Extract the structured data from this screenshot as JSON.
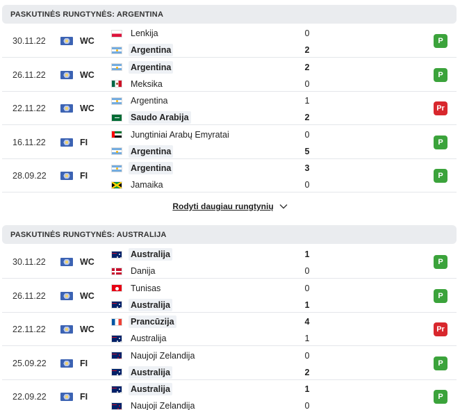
{
  "sections": [
    {
      "title": "PASKUTINĖS RUNGTYNĖS: ARGENTINA",
      "matches": [
        {
          "date": "30.11.22",
          "comp": "WC",
          "t1": {
            "name": "Lenkija",
            "flag": "pl",
            "score": "0",
            "win": false
          },
          "t2": {
            "name": "Argentina",
            "flag": "ar",
            "score": "2",
            "win": true
          },
          "result": "P",
          "result_type": "win"
        },
        {
          "date": "26.11.22",
          "comp": "WC",
          "t1": {
            "name": "Argentina",
            "flag": "ar",
            "score": "2",
            "win": true
          },
          "t2": {
            "name": "Meksika",
            "flag": "mx",
            "score": "0",
            "win": false
          },
          "result": "P",
          "result_type": "win"
        },
        {
          "date": "22.11.22",
          "comp": "WC",
          "t1": {
            "name": "Argentina",
            "flag": "ar",
            "score": "1",
            "win": false
          },
          "t2": {
            "name": "Saudo Arabija",
            "flag": "sa",
            "score": "2",
            "win": true
          },
          "result": "Pr",
          "result_type": "loss"
        },
        {
          "date": "16.11.22",
          "comp": "FI",
          "t1": {
            "name": "Jungtiniai Arabų Emyratai",
            "flag": "ae",
            "score": "0",
            "win": false
          },
          "t2": {
            "name": "Argentina",
            "flag": "ar",
            "score": "5",
            "win": true
          },
          "result": "P",
          "result_type": "win"
        },
        {
          "date": "28.09.22",
          "comp": "FI",
          "t1": {
            "name": "Argentina",
            "flag": "ar",
            "score": "3",
            "win": true
          },
          "t2": {
            "name": "Jamaika",
            "flag": "jm",
            "score": "0",
            "win": false
          },
          "result": "P",
          "result_type": "win"
        }
      ]
    },
    {
      "title": "PASKUTINĖS RUNGTYNĖS: AUSTRALIJA",
      "matches": [
        {
          "date": "30.11.22",
          "comp": "WC",
          "t1": {
            "name": "Australija",
            "flag": "au",
            "score": "1",
            "win": true
          },
          "t2": {
            "name": "Danija",
            "flag": "dk",
            "score": "0",
            "win": false
          },
          "result": "P",
          "result_type": "win"
        },
        {
          "date": "26.11.22",
          "comp": "WC",
          "t1": {
            "name": "Tunisas",
            "flag": "tn",
            "score": "0",
            "win": false
          },
          "t2": {
            "name": "Australija",
            "flag": "au",
            "score": "1",
            "win": true
          },
          "result": "P",
          "result_type": "win"
        },
        {
          "date": "22.11.22",
          "comp": "WC",
          "t1": {
            "name": "Prancūzija",
            "flag": "fr",
            "score": "4",
            "win": true
          },
          "t2": {
            "name": "Australija",
            "flag": "au",
            "score": "1",
            "win": false
          },
          "result": "Pr",
          "result_type": "loss"
        },
        {
          "date": "25.09.22",
          "comp": "FI",
          "t1": {
            "name": "Naujoji Zelandija",
            "flag": "nz",
            "score": "0",
            "win": false
          },
          "t2": {
            "name": "Australija",
            "flag": "au",
            "score": "2",
            "win": true
          },
          "result": "P",
          "result_type": "win"
        },
        {
          "date": "22.09.22",
          "comp": "FI",
          "t1": {
            "name": "Australija",
            "flag": "au",
            "score": "1",
            "win": true
          },
          "t2": {
            "name": "Naujoji Zelandija",
            "flag": "nz",
            "score": "0",
            "win": false
          },
          "result": "P",
          "result_type": "win"
        }
      ]
    }
  ],
  "show_more": {
    "label": "Rodyti daugiau rungtynių",
    "icon": "chevron-down-icon"
  },
  "colors": {
    "win": "#3ba33b",
    "loss": "#d8272d",
    "header_bg": "#eaecef"
  }
}
